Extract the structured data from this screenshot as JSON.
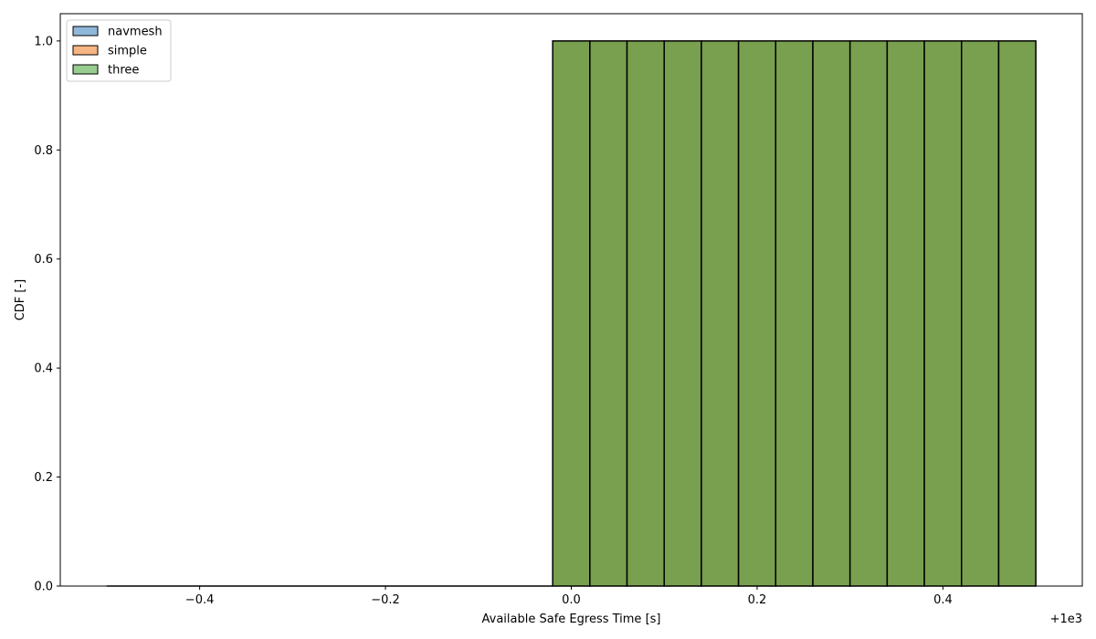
{
  "chart_data": {
    "type": "bar",
    "xlabel": "Available Safe Egress Time [s]",
    "ylabel": "CDF [-]",
    "x_offset_text": "+1e3",
    "xlim": [
      999.45,
      1000.55
    ],
    "ylim": [
      0.0,
      1.05
    ],
    "x_ticks": [
      -0.4,
      -0.2,
      0.0,
      0.2,
      0.4
    ],
    "x_tick_labels": [
      "−0.4",
      "−0.2",
      "0.0",
      "0.2",
      "0.4"
    ],
    "y_ticks": [
      0.0,
      0.2,
      0.4,
      0.6,
      0.8,
      1.0
    ],
    "y_tick_labels": [
      "0.0",
      "0.2",
      "0.4",
      "0.6",
      "0.8",
      "1.0"
    ],
    "grid": false,
    "legend": {
      "position": "top-left",
      "entries": [
        {
          "name": "navmesh",
          "color": "#8fb8da"
        },
        {
          "name": "simple",
          "color": "#f7b584"
        },
        {
          "name": "three",
          "color": "#98cc91"
        }
      ]
    },
    "overlap_fill_color": "#79a04f",
    "edge_color": "#000000",
    "zero_segment": {
      "x_start": 999.5,
      "x_end": 999.98
    },
    "bin_edges": [
      999.98,
      1000.02,
      1000.06,
      1000.1,
      1000.14,
      1000.18,
      1000.22,
      1000.26,
      1000.3,
      1000.34,
      1000.38,
      1000.42,
      1000.46,
      1000.5
    ],
    "series": [
      {
        "name": "navmesh",
        "values": [
          1,
          1,
          1,
          1,
          1,
          1,
          1,
          1,
          1,
          1,
          1,
          1,
          1
        ]
      },
      {
        "name": "simple",
        "values": [
          1,
          1,
          1,
          1,
          1,
          1,
          1,
          1,
          1,
          1,
          1,
          1,
          1
        ]
      },
      {
        "name": "three",
        "values": [
          1,
          1,
          1,
          1,
          1,
          1,
          1,
          1,
          1,
          1,
          1,
          1,
          1
        ]
      }
    ]
  }
}
